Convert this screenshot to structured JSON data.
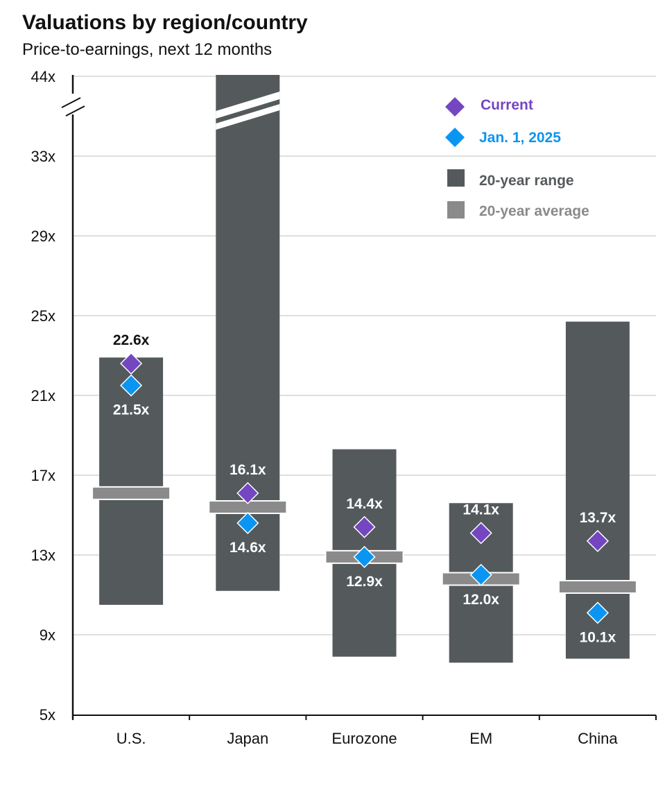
{
  "chart_data": {
    "type": "range-bar",
    "title": "Valuations by region/country",
    "subtitle": "Price-to-earnings, next 12 months",
    "ylim": [
      5,
      44
    ],
    "y_ticks": [
      "5x",
      "9x",
      "13x",
      "17x",
      "21x",
      "25x",
      "29x",
      "33x",
      "44x"
    ],
    "y_tick_values": [
      5,
      9,
      13,
      17,
      21,
      25,
      29,
      33,
      44
    ],
    "axis_break": "between 33x and 44x",
    "grid": true,
    "legend_position": "top-right",
    "legend": {
      "current": "Current",
      "jan": "Jan. 1, 2025",
      "range": "20-year range",
      "average": "20-year average"
    },
    "categories": [
      "U.S.",
      "Japan",
      "Eurozone",
      "EM",
      "China"
    ],
    "series": [
      {
        "name": "20-year range",
        "low": [
          10.5,
          11.2,
          7.9,
          7.6,
          7.8
        ],
        "high": [
          22.9,
          44,
          18.3,
          15.6,
          24.7
        ]
      },
      {
        "name": "20-year average",
        "values": [
          16.1,
          15.4,
          12.9,
          11.8,
          11.4
        ]
      },
      {
        "name": "Current",
        "values": [
          22.6,
          16.1,
          14.4,
          14.1,
          13.7
        ],
        "labels": [
          "22.6x",
          "16.1x",
          "14.4x",
          "14.1x",
          "13.7x"
        ]
      },
      {
        "name": "Jan. 1, 2025",
        "values": [
          21.5,
          14.6,
          12.9,
          12.0,
          10.1
        ],
        "labels": [
          "21.5x",
          "14.6x",
          "12.9x",
          "12.0x",
          "10.1x"
        ]
      }
    ],
    "colors": {
      "current": "#7446c0",
      "jan": "#0b95f2",
      "range": "#545a5c",
      "average": "#8a8a8a",
      "grid": "#cccccc"
    }
  }
}
